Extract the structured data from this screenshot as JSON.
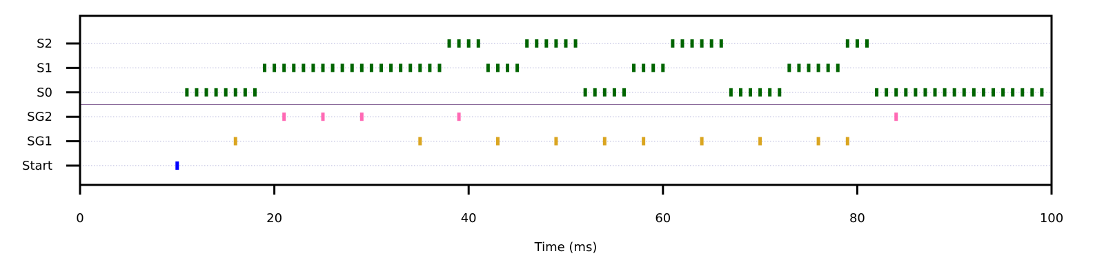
{
  "chart_data": {
    "type": "scatter",
    "title": "",
    "xlabel": "Time (ms)",
    "ylabel": "",
    "xlim": [
      0,
      100
    ],
    "xticks": [
      0,
      20,
      40,
      60,
      80,
      100
    ],
    "categories": [
      "Start",
      "SG1",
      "SG2",
      "S0",
      "S1",
      "S2"
    ],
    "grid": "horizontal dotted",
    "series": [
      {
        "category": "Start",
        "color": "#0000ff",
        "x": [
          10
        ]
      },
      {
        "category": "SG1",
        "color": "#daa520",
        "x": [
          16,
          35,
          43,
          49,
          54,
          58,
          64,
          70,
          76,
          79
        ]
      },
      {
        "category": "SG2",
        "color": "#ff69b4",
        "x": [
          21,
          25,
          29,
          39,
          84
        ]
      },
      {
        "category": "S0",
        "color": "#006400",
        "x": [
          11,
          12,
          13,
          14,
          15,
          16,
          17,
          18,
          52,
          53,
          54,
          55,
          56,
          67,
          68,
          69,
          70,
          71,
          72,
          82,
          83,
          84,
          85,
          86,
          87,
          88,
          89,
          90,
          91,
          92,
          93,
          94,
          95,
          96,
          97,
          98,
          99
        ]
      },
      {
        "category": "S1",
        "color": "#006400",
        "x": [
          19,
          20,
          21,
          22,
          23,
          24,
          25,
          26,
          27,
          28,
          29,
          30,
          31,
          32,
          33,
          34,
          35,
          36,
          37,
          42,
          43,
          44,
          45,
          57,
          58,
          59,
          60,
          73,
          74,
          75,
          76,
          77,
          78
        ]
      },
      {
        "category": "S2",
        "color": "#006400",
        "x": [
          38,
          39,
          40,
          41,
          46,
          47,
          48,
          49,
          50,
          51,
          61,
          62,
          63,
          64,
          65,
          66,
          79,
          80,
          81
        ]
      }
    ],
    "separator_between": [
      "SG2",
      "S0"
    ]
  }
}
